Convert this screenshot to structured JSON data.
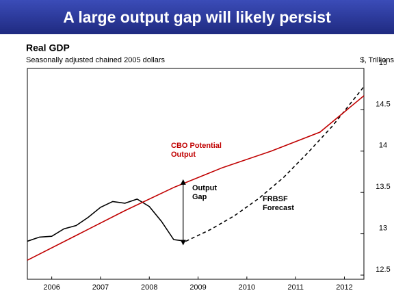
{
  "chart_data": {
    "type": "line",
    "title": "A large output gap will likely persist",
    "subtitle": "Real GDP",
    "note": "Seasonally adjusted chained 2005 dollars",
    "y_axis_label": "$, Trillions",
    "series": [
      {
        "color": "#000000",
        "style": "solid",
        "x": [
          2006.0,
          2006.25,
          2006.5,
          2006.75,
          2007.0,
          2007.25,
          2007.5,
          2007.75,
          2008.0,
          2008.25,
          2008.5,
          2008.75,
          2009.0,
          2009.25
        ],
        "values": [
          12.91,
          12.96,
          12.97,
          13.06,
          13.1,
          13.2,
          13.32,
          13.39,
          13.37,
          13.42,
          13.33,
          13.15,
          12.93,
          12.91
        ]
      },
      {
        "color": "#000000",
        "style": "dashed",
        "x": [
          2009.25,
          2009.75,
          2010.25,
          2010.75,
          2011.25,
          2011.75,
          2012.25,
          2012.9
        ],
        "values": [
          12.91,
          13.05,
          13.22,
          13.43,
          13.68,
          13.98,
          14.3,
          14.78
        ]
      },
      {
        "color": "#c00000",
        "style": "solid",
        "x": [
          2006.0,
          2007.0,
          2008.0,
          2009.0,
          2010.0,
          2011.0,
          2012.0,
          2012.9
        ],
        "values": [
          12.68,
          12.98,
          13.28,
          13.56,
          13.8,
          14.0,
          14.23,
          14.67
        ]
      }
    ],
    "annotations": [
      "CBO Potential",
      "Output",
      "Output",
      "Gap",
      "FRBSF",
      "Forecast"
    ],
    "xlim": [
      2006.0,
      2012.9
    ],
    "xticks": [
      {
        "value": 2006.5,
        "label": "2006"
      },
      {
        "value": 2007.5,
        "label": "2007"
      },
      {
        "value": 2008.5,
        "label": "2008"
      },
      {
        "value": 2009.5,
        "label": "2009"
      },
      {
        "value": 2010.5,
        "label": "2010"
      },
      {
        "value": 2011.5,
        "label": "2011"
      },
      {
        "value": 2012.5,
        "label": "2012"
      }
    ],
    "ylim": [
      12.45,
      15.0
    ],
    "yticks": [
      12.5,
      13,
      13.5,
      14,
      14.5,
      15
    ]
  }
}
